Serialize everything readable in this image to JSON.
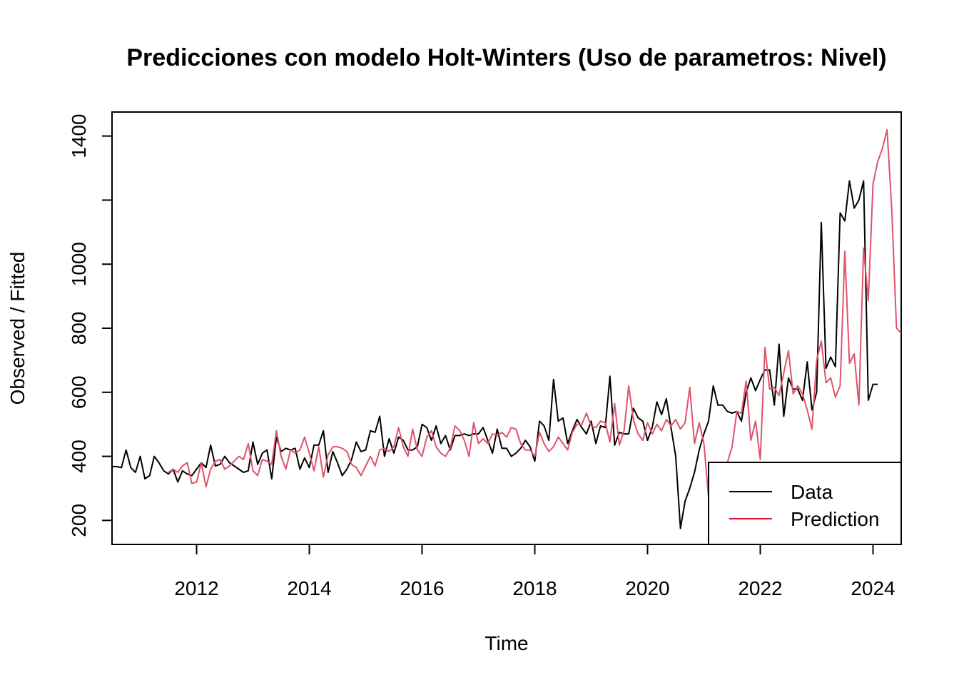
{
  "chart_data": {
    "type": "line",
    "title": "Predicciones con modelo Holt-Winters (Uso de parametros: Nivel)",
    "xlabel": "Time",
    "ylabel": "Observed / Fitted",
    "xlim": [
      2010.5,
      2024.5
    ],
    "ylim": [
      125,
      1475
    ],
    "xticks": [
      2012,
      2014,
      2016,
      2018,
      2020,
      2022,
      2024
    ],
    "yticks": [
      200,
      400,
      600,
      800,
      1000,
      1200,
      1400
    ],
    "yticklabels": [
      "200",
      "400",
      "600",
      "800",
      "1000",
      "",
      "1400"
    ],
    "legend_position": "bottom-right",
    "grid": false,
    "series": [
      {
        "name": "Data",
        "color": "#000000",
        "x_start": 2010.5,
        "step": 0.08333,
        "values": [
          368,
          368,
          365,
          420,
          365,
          350,
          400,
          330,
          340,
          400,
          380,
          355,
          345,
          360,
          320,
          355,
          345,
          340,
          360,
          380,
          365,
          435,
          370,
          375,
          400,
          380,
          370,
          360,
          350,
          355,
          445,
          375,
          410,
          420,
          330,
          460,
          415,
          425,
          420,
          425,
          360,
          395,
          365,
          435,
          435,
          480,
          350,
          415,
          380,
          340,
          360,
          390,
          445,
          415,
          420,
          480,
          475,
          525,
          400,
          455,
          410,
          460,
          450,
          420,
          420,
          430,
          500,
          490,
          450,
          495,
          440,
          465,
          420,
          465,
          465,
          470,
          465,
          470,
          470,
          490,
          450,
          410,
          485,
          425,
          425,
          400,
          410,
          425,
          450,
          430,
          385,
          510,
          495,
          450,
          640,
          510,
          520,
          440,
          480,
          515,
          490,
          470,
          510,
          440,
          495,
          490,
          650,
          435,
          475,
          470,
          470,
          550,
          520,
          510,
          450,
          490,
          570,
          530,
          580,
          490,
          400,
          175,
          260,
          300,
          350,
          420,
          470,
          510,
          620,
          560,
          560,
          540,
          535,
          540,
          510,
          600,
          645,
          605,
          640,
          670,
          670,
          560,
          750,
          525,
          645,
          610,
          610,
          575,
          695,
          545,
          600,
          1130,
          675,
          710,
          680,
          1160,
          1135,
          1260,
          1175,
          1200,
          1260,
          575,
          625,
          625
        ]
      },
      {
        "name": "Prediction",
        "color": "#DF536B",
        "x_start": 2011.5,
        "step": 0.08333,
        "values": [
          350,
          360,
          350,
          370,
          380,
          315,
          320,
          380,
          305,
          360,
          385,
          390,
          360,
          370,
          385,
          400,
          390,
          440,
          355,
          340,
          390,
          385,
          375,
          480,
          400,
          360,
          420,
          410,
          420,
          460,
          410,
          355,
          430,
          335,
          405,
          430,
          430,
          425,
          415,
          375,
          365,
          340,
          370,
          400,
          370,
          420,
          425,
          415,
          430,
          490,
          430,
          400,
          485,
          420,
          400,
          460,
          480,
          430,
          410,
          400,
          425,
          495,
          480,
          450,
          400,
          505,
          440,
          455,
          440,
          470,
          465,
          475,
          460,
          490,
          485,
          440,
          420,
          420,
          400,
          475,
          440,
          415,
          430,
          460,
          440,
          420,
          475,
          500,
          500,
          535,
          495,
          490,
          510,
          505,
          445,
          565,
          435,
          480,
          620,
          515,
          470,
          450,
          505,
          470,
          500,
          480,
          515,
          495,
          515,
          485,
          505,
          615,
          440,
          505,
          440,
          270,
          290,
          280,
          330,
          380,
          430,
          540,
          535,
          635,
          450,
          510,
          390,
          740,
          610,
          615,
          590,
          660,
          730,
          595,
          620,
          595,
          545,
          485,
          700,
          760,
          630,
          645,
          585,
          620,
          1040,
          690,
          720,
          560,
          1050,
          885,
          1250,
          1320,
          1360,
          1420,
          1170,
          800,
          785
        ]
      }
    ]
  }
}
